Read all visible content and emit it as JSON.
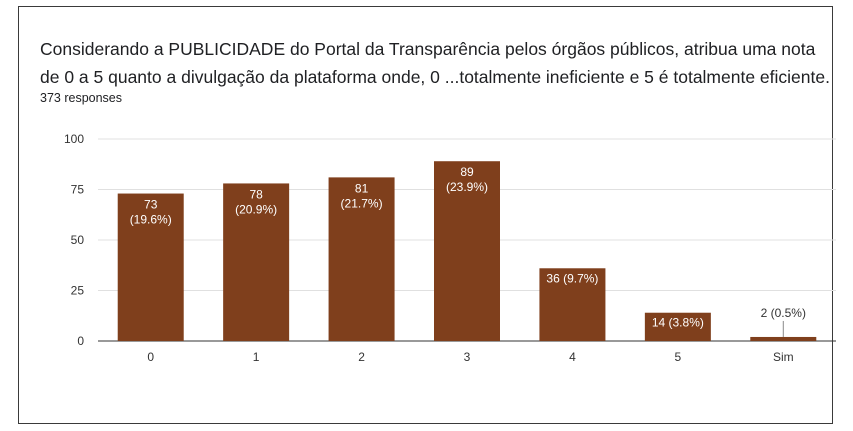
{
  "chart_data": {
    "type": "bar",
    "title": "Considerando a PUBLICIDADE do Portal da Transparência pelos órgãos públicos, atribua uma nota de 0 a 5 quanto a divulgação da plataforma onde, 0 ...totalmente ineficiente e 5 é totalmente eficiente.",
    "subtitle": "373 responses",
    "categories": [
      "0",
      "1",
      "2",
      "3",
      "4",
      "5",
      "Sim"
    ],
    "values": [
      73,
      78,
      81,
      89,
      36,
      14,
      2
    ],
    "data_labels": [
      [
        "73",
        "(19.6%)"
      ],
      [
        "78",
        "(20.9%)"
      ],
      [
        "81",
        "(21.7%)"
      ],
      [
        "89",
        "(23.9%)"
      ],
      [
        "36 (9.7%)"
      ],
      [
        "14 (3.8%)"
      ],
      [
        "2 (0.5%)"
      ]
    ],
    "yticks": [
      0,
      25,
      50,
      75,
      100
    ],
    "ylim": [
      0,
      100
    ],
    "xlabel": "",
    "ylabel": "",
    "grid": true,
    "legend": "none",
    "bar_color": "#7f3f1c"
  }
}
